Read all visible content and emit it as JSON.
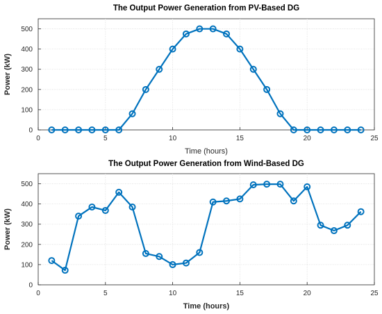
{
  "colors": {
    "series": "#0072BD"
  },
  "chart_data": [
    {
      "type": "line",
      "title": "The Output Power Generation from PV-Based DG",
      "xlabel": "Time (hours)",
      "ylabel": "Power (kW)",
      "xlim": [
        0,
        25
      ],
      "ylim": [
        0,
        550
      ],
      "xticks": [
        0,
        5,
        10,
        15,
        20,
        25
      ],
      "yticks": [
        0,
        100,
        200,
        300,
        400,
        500
      ],
      "grid": true,
      "x": [
        1,
        2,
        3,
        4,
        5,
        6,
        7,
        8,
        9,
        10,
        11,
        12,
        13,
        14,
        15,
        16,
        17,
        18,
        19,
        20,
        21,
        22,
        23,
        24
      ],
      "series": [
        {
          "values": [
            0,
            0,
            0,
            0,
            0,
            0,
            80,
            200,
            300,
            400,
            475,
            500,
            500,
            475,
            400,
            300,
            200,
            80,
            0,
            0,
            0,
            0,
            0,
            0
          ]
        }
      ]
    },
    {
      "type": "line",
      "title": "The Output Power Generation from Wind-Based DG",
      "xlabel": "Time (hours)",
      "ylabel": "Power (kW)",
      "xlim": [
        0,
        25
      ],
      "ylim": [
        0,
        550
      ],
      "xticks": [
        0,
        5,
        10,
        15,
        20,
        25
      ],
      "yticks": [
        0,
        100,
        200,
        300,
        400,
        500
      ],
      "grid": true,
      "x": [
        1,
        2,
        3,
        4,
        5,
        6,
        7,
        8,
        9,
        10,
        11,
        12,
        13,
        14,
        15,
        16,
        17,
        18,
        19,
        20,
        21,
        22,
        23,
        24
      ],
      "series": [
        {
          "values": [
            120,
            72,
            340,
            385,
            368,
            458,
            385,
            155,
            140,
            100,
            108,
            160,
            410,
            415,
            425,
            495,
            498,
            498,
            415,
            485,
            295,
            268,
            295,
            362
          ]
        }
      ]
    }
  ]
}
